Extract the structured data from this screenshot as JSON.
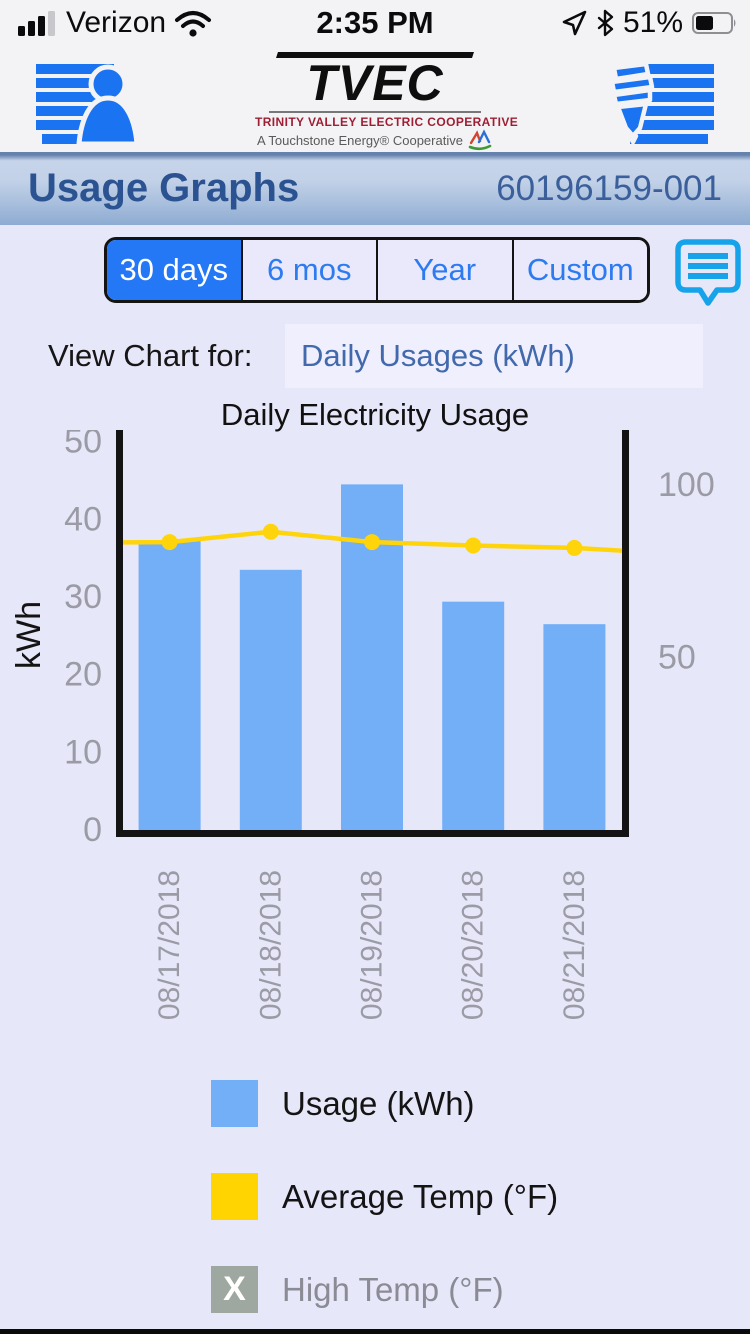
{
  "status_bar": {
    "carrier": "Verizon",
    "time": "2:35 PM",
    "battery_percent": "51%"
  },
  "header": {
    "logo": {
      "word": "TVEC",
      "line1": "TRINITY VALLEY ELECTRIC COOPERATIVE",
      "line2": "A Touchstone Energy® Cooperative"
    }
  },
  "title_bar": {
    "title": "Usage Graphs",
    "account_number": "60196159-001"
  },
  "tabs": [
    {
      "label": "30 days",
      "selected": true
    },
    {
      "label": "6 mos",
      "selected": false
    },
    {
      "label": "Year",
      "selected": false
    },
    {
      "label": "Custom",
      "selected": false
    }
  ],
  "view_chart": {
    "label": "View Chart for:",
    "value": "Daily Usages (kWh)"
  },
  "chart_data": {
    "type": "bar",
    "title": "Daily Electricity Usage",
    "categories": [
      "08/17/2018",
      "08/18/2018",
      "08/19/2018",
      "08/20/2018",
      "08/21/2018"
    ],
    "series": [
      {
        "name": "Usage (kWh)",
        "type": "bar",
        "axis": "left",
        "color": "#73aff7",
        "values": [
          37.3,
          33.5,
          44.5,
          29.4,
          26.5
        ]
      },
      {
        "name": "Average Temp (°F)",
        "type": "line",
        "axis": "right",
        "color": "#ffd40a",
        "values": [
          83.5,
          86.5,
          83.5,
          82.5,
          81.8
        ],
        "edge_values": [
          83.4,
          81.0
        ]
      }
    ],
    "left_axis": {
      "label": "kWh",
      "ticks": [
        0,
        10,
        20,
        30,
        40,
        50
      ],
      "range": [
        0,
        51.5
      ]
    },
    "right_axis": {
      "ticks": [
        50,
        100
      ],
      "range": [
        0,
        116
      ]
    },
    "grid": false,
    "legend_position": "bottom",
    "tick_color": "#9b9ba6",
    "axis_color": "#141414"
  },
  "legend": [
    {
      "label": "Usage (kWh)",
      "color": "#73aff7",
      "enabled": true,
      "mark": ""
    },
    {
      "label": "Average Temp (°F)",
      "color": "#ffd400",
      "enabled": true,
      "mark": ""
    },
    {
      "label": "High Temp (°F)",
      "color": "#9fa8a0",
      "enabled": false,
      "mark": "X"
    }
  ],
  "colors": {
    "tab_selected_bg": "#2478f5",
    "tab_text": "#2d7bf0",
    "header_icon_blue": "#1a73f0",
    "comment_icon_blue": "#17a3ea",
    "title_text": "#2c5391",
    "page_bg": "#e7e7fa"
  }
}
